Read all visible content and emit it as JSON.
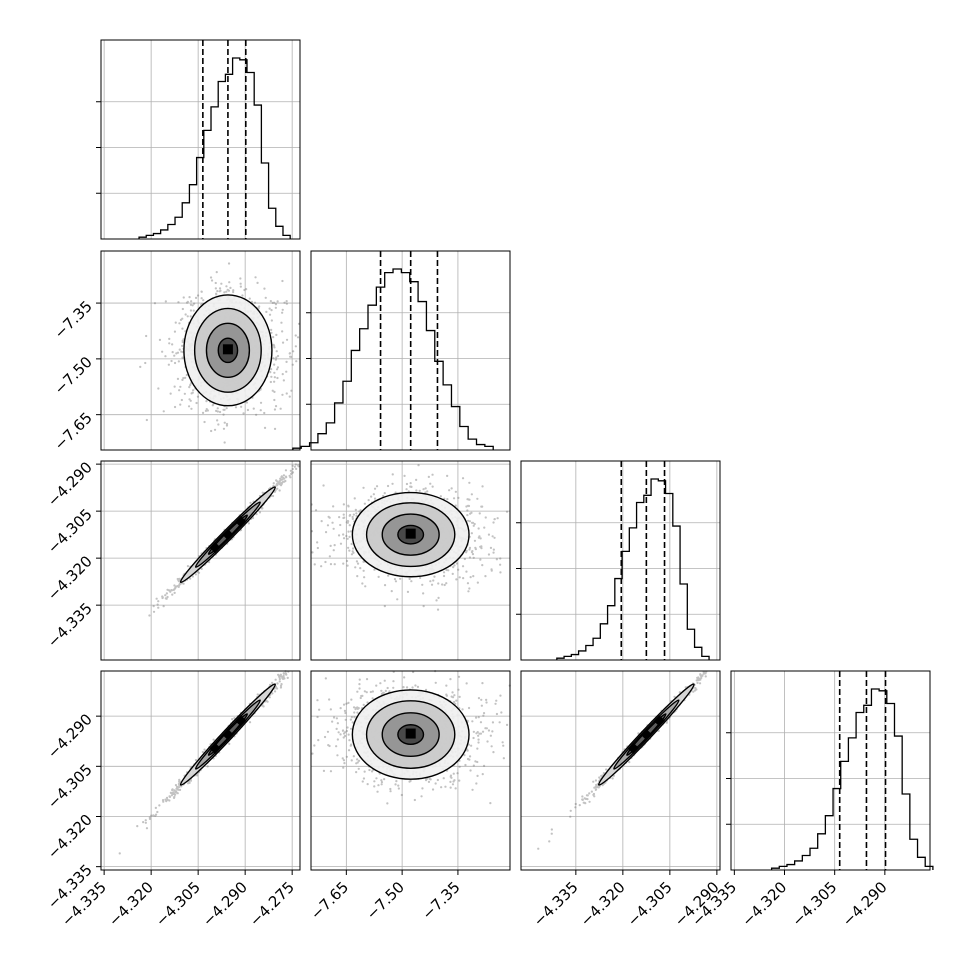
{
  "chart_data": {
    "type": "corner",
    "title": "",
    "grid": true,
    "colors": {
      "contour": "#000000",
      "scatter": "#555555",
      "quantile_line": "#000000"
    },
    "parameters": [
      {
        "id": "p0",
        "range": [
          -4.336,
          -4.2725
        ]
      },
      {
        "id": "p1",
        "range": [
          -7.745,
          -7.21
        ]
      },
      {
        "id": "p2",
        "range": [
          -4.3525,
          -4.289
        ]
      },
      {
        "id": "p3",
        "range": [
          -4.336,
          -4.2765
        ]
      }
    ],
    "ticks": {
      "p0": [
        -4.335,
        -4.32,
        -4.305,
        -4.29,
        -4.275
      ],
      "p1": [
        -7.65,
        -7.5,
        -7.35
      ],
      "p2": [
        -4.335,
        -4.32,
        -4.305,
        -4.29
      ],
      "p3": [
        -4.335,
        -4.32,
        -4.305,
        -4.29
      ]
    },
    "tick_labels": {
      "p0": [
        "−4.335",
        "−4.320",
        "−4.305",
        "−4.290",
        "−4.275"
      ],
      "p1": [
        "−7.65",
        "−7.50",
        "−7.35"
      ],
      "p2": [
        "−4.335",
        "−4.320",
        "−4.305",
        "−4.290"
      ],
      "p3": [
        "−4.335",
        "−4.320",
        "−4.305",
        "−4.290"
      ]
    },
    "quantiles": {
      "p0": [
        -4.3035,
        -4.2955,
        -4.2898
      ],
      "p1": [
        -7.558,
        -7.477,
        -7.405
      ],
      "p2": [
        -4.3205,
        -4.3125,
        -4.3067
      ],
      "p3": [
        -4.3035,
        -4.2955,
        -4.2898
      ]
    },
    "histograms": {
      "p0": [
        0.01,
        0.02,
        0.03,
        0.05,
        0.08,
        0.12,
        0.2,
        0.3,
        0.45,
        0.6,
        0.73,
        0.87,
        0.91,
        1.0,
        0.99,
        0.92,
        0.74,
        0.42,
        0.17,
        0.07,
        0.02
      ],
      "p1": [
        0.01,
        0.02,
        0.04,
        0.09,
        0.15,
        0.26,
        0.38,
        0.55,
        0.67,
        0.8,
        0.9,
        0.98,
        1.0,
        0.98,
        0.93,
        0.82,
        0.66,
        0.49,
        0.36,
        0.24,
        0.13,
        0.06,
        0.03,
        0.02
      ],
      "p2": [
        0.01,
        0.02,
        0.03,
        0.05,
        0.08,
        0.12,
        0.2,
        0.3,
        0.45,
        0.6,
        0.73,
        0.87,
        0.91,
        1.0,
        0.99,
        0.92,
        0.74,
        0.42,
        0.17,
        0.07,
        0.02
      ],
      "p3": [
        0.01,
        0.02,
        0.03,
        0.05,
        0.08,
        0.12,
        0.2,
        0.3,
        0.45,
        0.6,
        0.73,
        0.87,
        0.91,
        1.0,
        0.99,
        0.92,
        0.74,
        0.42,
        0.17,
        0.07,
        0.02
      ]
    },
    "xlabels": [
      "",
      "",
      "",
      ""
    ],
    "ylabels": [
      "",
      "",
      "",
      ""
    ]
  }
}
